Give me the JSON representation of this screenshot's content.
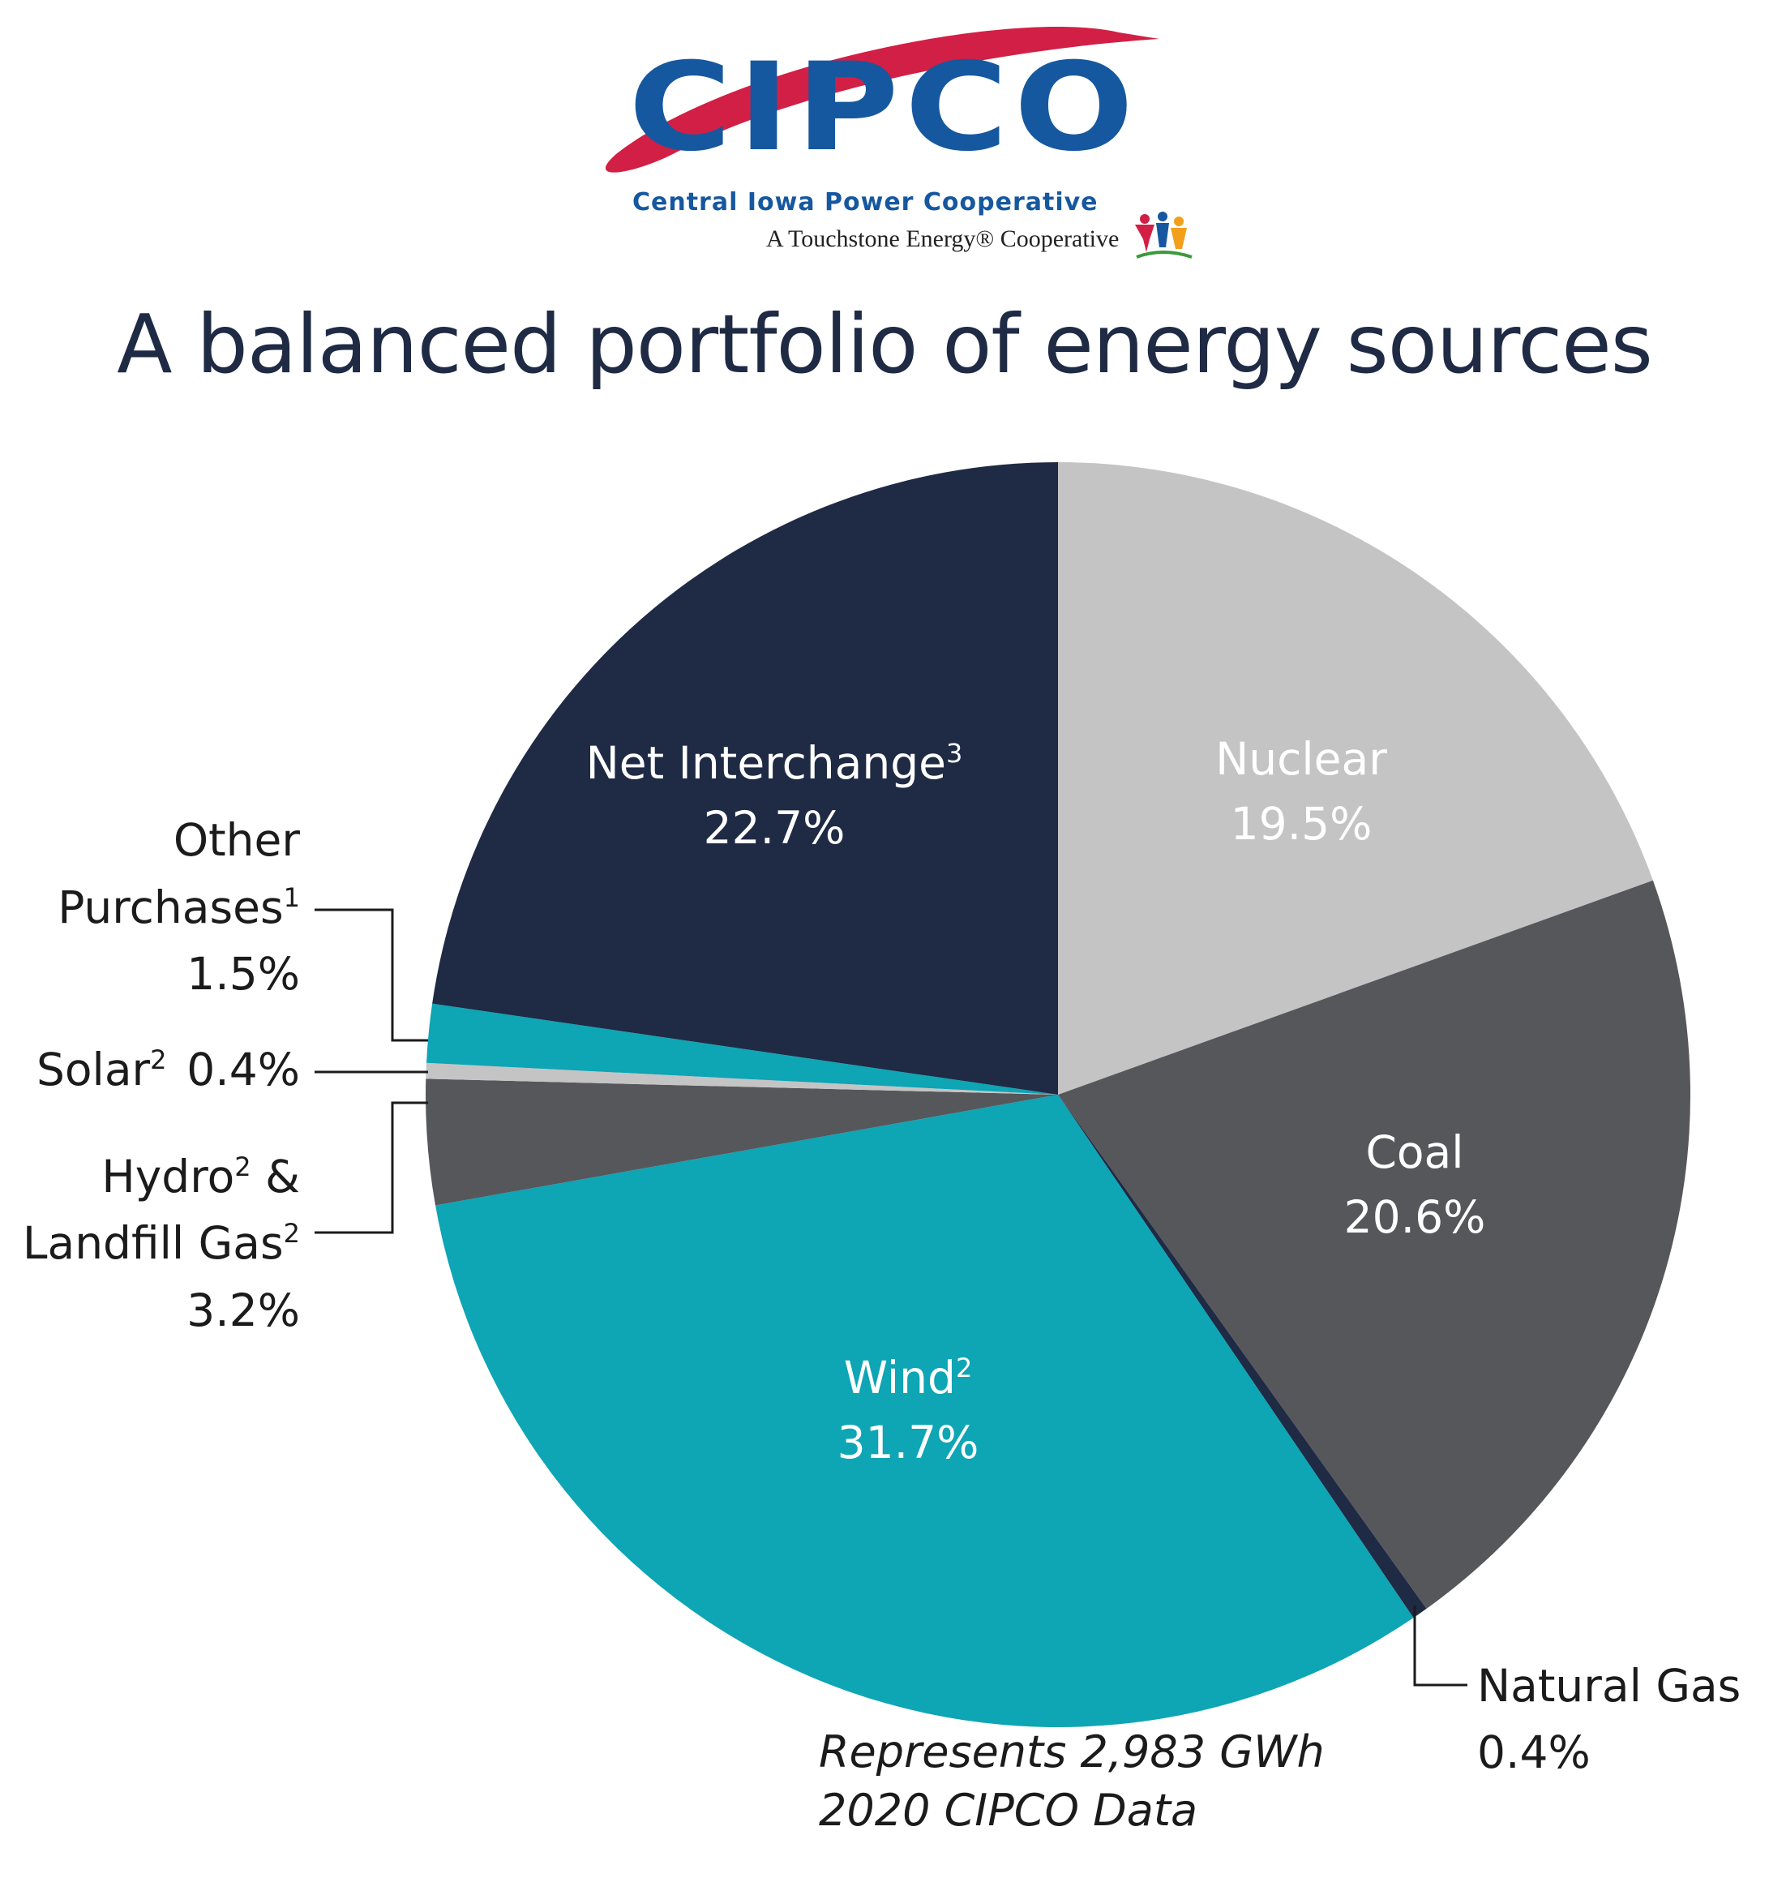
{
  "logo": {
    "wordmark": "CIPCO",
    "subtitle": "Central Iowa Power Cooperative",
    "tagline": "A Touchstone Energy® Cooperative",
    "colors": {
      "blue": "#16589f",
      "swoosh": "#d21f45"
    }
  },
  "title": "A balanced portfolio of energy sources",
  "chart_data": {
    "type": "pie",
    "start_angle_deg": 0,
    "direction": "clockwise",
    "slices": [
      {
        "label": "Nuclear",
        "sup": "",
        "value": 19.5,
        "value_label": "19.5%",
        "color": "#c4c4c4",
        "label_placement": "inside"
      },
      {
        "label": "Coal",
        "sup": "",
        "value": 20.6,
        "value_label": "20.6%",
        "color": "#56575b",
        "label_placement": "inside"
      },
      {
        "label": "Natural Gas",
        "sup": "",
        "value": 0.4,
        "value_label": "0.4%",
        "color": "#1f2a44",
        "label_placement": "outside"
      },
      {
        "label": "Wind",
        "sup": "2",
        "value": 31.7,
        "value_label": "31.7%",
        "color": "#0ea5b5",
        "label_placement": "inside"
      },
      {
        "label": "Hydro & Landfill Gas",
        "sup": "2",
        "value": 3.2,
        "value_label": "3.2%",
        "color": "#56575b",
        "label_placement": "outside"
      },
      {
        "label": "Solar",
        "sup": "2",
        "value": 0.4,
        "value_label": "0.4%",
        "color": "#c4c4c4",
        "label_placement": "outside"
      },
      {
        "label": "Other Purchases",
        "sup": "1",
        "value": 1.5,
        "value_label": "1.5%",
        "color": "#0ea5b5",
        "label_placement": "outside"
      },
      {
        "label": "Net Interchange",
        "sup": "3",
        "value": 22.7,
        "value_label": "22.7%",
        "color": "#1f2a44",
        "label_placement": "inside"
      }
    ],
    "outside_text": {
      "other_line1": "Other",
      "other_line2": "Purchases",
      "solar_line": "Solar",
      "hydro_line1": "Hydro",
      "hydro_amp": " &",
      "hydro_line2": "Landfill Gas",
      "natgas_line1": "Natural Gas"
    }
  },
  "note": {
    "line1": "Represents 2,983 GWh",
    "line2": "2020 CIPCO Data"
  }
}
